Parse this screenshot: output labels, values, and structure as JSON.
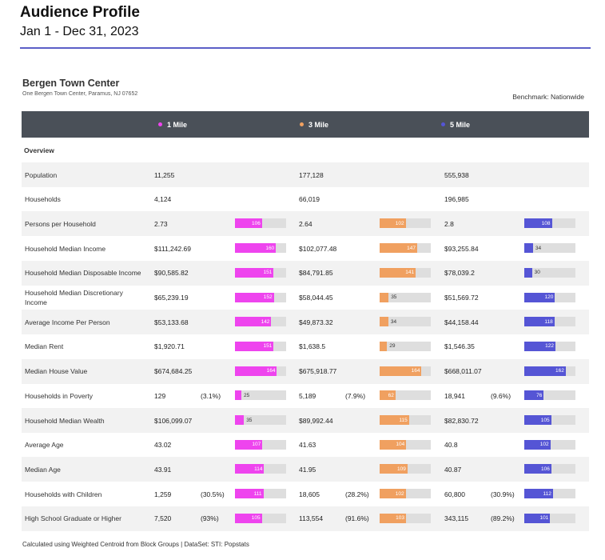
{
  "header": {
    "title": "Audience Profile",
    "subtitle": "Jan 1 - Dec 31, 2023"
  },
  "venue": {
    "name": "Bergen Town Center",
    "address": "One Bergen Town Center, Paramus, NJ 07652",
    "benchmark": "Benchmark: Nationwide"
  },
  "radii": [
    {
      "label": "1 Mile",
      "color": "#ee44ee"
    },
    {
      "label": "3 Mile",
      "color": "#f0a060"
    },
    {
      "label": "5 Mile",
      "color": "#5555d5"
    }
  ],
  "section": {
    "label": "Overview"
  },
  "rows": [
    {
      "label": "Population",
      "cells": [
        {
          "value": "11,255"
        },
        {
          "value": "177,128"
        },
        {
          "value": "555,938"
        }
      ]
    },
    {
      "label": "Households",
      "cells": [
        {
          "value": "4,124"
        },
        {
          "value": "66,019"
        },
        {
          "value": "196,985"
        }
      ]
    },
    {
      "label": "Persons per Household",
      "cells": [
        {
          "value": "2.73",
          "index": "106"
        },
        {
          "value": "2.64",
          "index": "102"
        },
        {
          "value": "2.8",
          "index": "108"
        }
      ]
    },
    {
      "label": "Household Median Income",
      "cells": [
        {
          "value": "$111,242.69",
          "index": "160"
        },
        {
          "value": "$102,077.48",
          "index": "147"
        },
        {
          "value": "$93,255.84",
          "index": "34"
        }
      ]
    },
    {
      "label": "Household Median Disposable Income",
      "cells": [
        {
          "value": "$90,585.82",
          "index": "151"
        },
        {
          "value": "$84,791.85",
          "index": "141"
        },
        {
          "value": "$78,039.2",
          "index": "30"
        }
      ]
    },
    {
      "label": "Household Median Discretionary Income",
      "cells": [
        {
          "value": "$65,239.19",
          "index": "152"
        },
        {
          "value": "$58,044.45",
          "index": "35"
        },
        {
          "value": "$51,569.72",
          "index": "120"
        }
      ]
    },
    {
      "label": "Average Income Per Person",
      "cells": [
        {
          "value": "$53,133.68",
          "index": "142"
        },
        {
          "value": "$49,873.32",
          "index": "34"
        },
        {
          "value": "$44,158.44",
          "index": "118"
        }
      ]
    },
    {
      "label": "Median Rent",
      "cells": [
        {
          "value": "$1,920.71",
          "index": "151"
        },
        {
          "value": "$1,638.5",
          "index": "29"
        },
        {
          "value": "$1,546.35",
          "index": "122"
        }
      ]
    },
    {
      "label": "Median House Value",
      "cells": [
        {
          "value": "$674,684.25",
          "index": "164"
        },
        {
          "value": "$675,918.77",
          "index": "164"
        },
        {
          "value": "$668,011.07",
          "index": "162"
        }
      ]
    },
    {
      "label": "Households in Poverty",
      "cells": [
        {
          "value": "129",
          "pct": "(3.1%)",
          "index": "25"
        },
        {
          "value": "5,189",
          "pct": "(7.9%)",
          "index": "62"
        },
        {
          "value": "18,941",
          "pct": "(9.6%)",
          "index": "76"
        }
      ]
    },
    {
      "label": "Household Median Wealth",
      "cells": [
        {
          "value": "$106,099.07",
          "index": "35"
        },
        {
          "value": "$89,992.44",
          "index": "115"
        },
        {
          "value": "$82,830.72",
          "index": "105"
        }
      ]
    },
    {
      "label": "Average Age",
      "cells": [
        {
          "value": "43.02",
          "index": "107"
        },
        {
          "value": "41.63",
          "index": "104"
        },
        {
          "value": "40.8",
          "index": "102"
        }
      ]
    },
    {
      "label": "Median Age",
      "cells": [
        {
          "value": "43.91",
          "index": "114"
        },
        {
          "value": "41.95",
          "index": "109"
        },
        {
          "value": "40.87",
          "index": "106"
        }
      ]
    },
    {
      "label": "Households with Children",
      "cells": [
        {
          "value": "1,259",
          "pct": "(30.5%)",
          "index": "111"
        },
        {
          "value": "18,605",
          "pct": "(28.2%)",
          "index": "102"
        },
        {
          "value": "60,800",
          "pct": "(30.9%)",
          "index": "112"
        }
      ]
    },
    {
      "label": "High School Graduate or Higher",
      "cells": [
        {
          "value": "7,520",
          "pct": "(93%)",
          "index": "105"
        },
        {
          "value": "113,554",
          "pct": "(91.6%)",
          "index": "103"
        },
        {
          "value": "343,115",
          "pct": "(89.2%)",
          "index": "101"
        }
      ]
    }
  ],
  "footnote": "Calculated using Weighted Centroid from Block Groups | DataSet: STI: Popstats"
}
